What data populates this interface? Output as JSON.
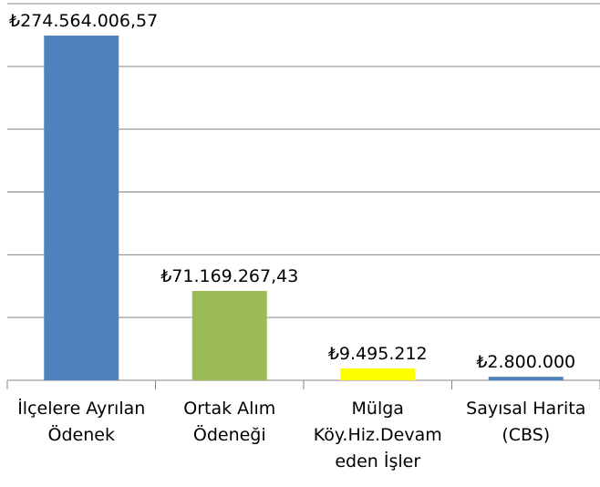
{
  "chart_data": {
    "type": "bar",
    "categories": [
      "İlçelere Ayrılan Ödenek",
      "Ortak Alım Ödeneği",
      "Mülga Köy.Hiz.Devam eden İşler",
      "Sayısal Harita (CBS)"
    ],
    "values": [
      274564006.57,
      71169267.43,
      9495212,
      2800000
    ],
    "value_labels": [
      "₺274.564.006,57",
      "₺71.169.267,43",
      "₺9.495.212",
      "₺2.800.000"
    ],
    "colors": [
      "#4f81bd",
      "#9bbb59",
      "#ffff00",
      "#4f81bd"
    ],
    "ylim": [
      0,
      300000000
    ],
    "yticks": [
      0,
      50000000,
      100000000,
      150000000,
      200000000,
      250000000,
      300000000
    ],
    "grid": true
  }
}
